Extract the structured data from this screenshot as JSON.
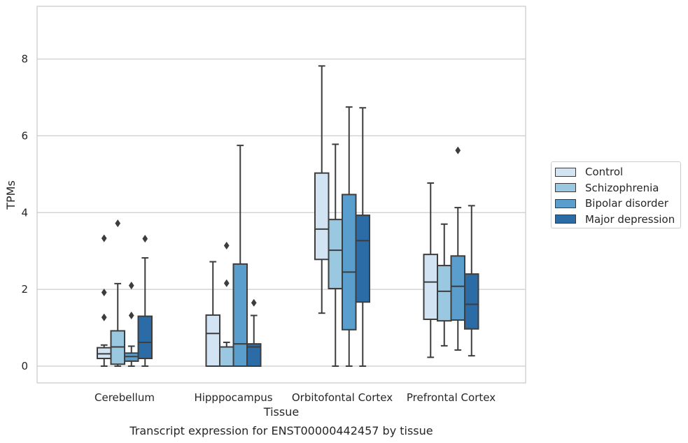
{
  "chart_data": {
    "type": "box",
    "xlabel": "Tissue",
    "ylabel": "TPMs",
    "caption": "Transcript expression for ENST00000442457 by tissue",
    "ylim": [
      -0.45,
      9.4
    ],
    "yticks": [
      0,
      2,
      4,
      6,
      8
    ],
    "grid": true,
    "legend_position": "right",
    "categories": [
      "Cerebellum",
      "Hipppocampus",
      "Orbitofontal Cortex",
      "Prefrontal Cortex"
    ],
    "series": [
      {
        "name": "Control",
        "color": "#d2e3f3",
        "boxes": [
          {
            "whisker_low": 0.0,
            "q1": 0.2,
            "median": 0.32,
            "q3": 0.48,
            "whisker_high": 0.55,
            "outliers": [
              1.27,
              1.92,
              3.33
            ]
          },
          {
            "whisker_low": 0.0,
            "q1": 0.0,
            "median": 0.85,
            "q3": 1.33,
            "whisker_high": 2.72,
            "outliers": []
          },
          {
            "whisker_low": 1.38,
            "q1": 2.78,
            "median": 3.57,
            "q3": 5.03,
            "whisker_high": 7.82,
            "outliers": []
          },
          {
            "whisker_low": 0.23,
            "q1": 1.22,
            "median": 2.19,
            "q3": 2.91,
            "whisker_high": 4.77,
            "outliers": []
          }
        ]
      },
      {
        "name": "Schizophrenia",
        "color": "#9ac8e0",
        "boxes": [
          {
            "whisker_low": 0.0,
            "q1": 0.05,
            "median": 0.5,
            "q3": 0.92,
            "whisker_high": 2.15,
            "outliers": [
              3.72
            ]
          },
          {
            "whisker_low": 0.0,
            "q1": 0.0,
            "median": 0.0,
            "q3": 0.5,
            "whisker_high": 0.62,
            "outliers": [
              2.16,
              3.14
            ]
          },
          {
            "whisker_low": 0.0,
            "q1": 2.02,
            "median": 3.02,
            "q3": 3.82,
            "whisker_high": 5.78,
            "outliers": []
          },
          {
            "whisker_low": 0.53,
            "q1": 1.18,
            "median": 1.95,
            "q3": 2.62,
            "whisker_high": 3.7,
            "outliers": []
          }
        ]
      },
      {
        "name": "Bipolar disorder",
        "color": "#5a9ecd",
        "boxes": [
          {
            "whisker_low": 0.0,
            "q1": 0.13,
            "median": 0.25,
            "q3": 0.34,
            "whisker_high": 0.52,
            "outliers": [
              1.32,
              2.1
            ]
          },
          {
            "whisker_low": 0.0,
            "q1": 0.0,
            "median": 0.58,
            "q3": 2.66,
            "whisker_high": 5.75,
            "outliers": []
          },
          {
            "whisker_low": 0.0,
            "q1": 0.95,
            "median": 2.45,
            "q3": 4.47,
            "whisker_high": 6.75,
            "outliers": []
          },
          {
            "whisker_low": 0.42,
            "q1": 1.2,
            "median": 2.08,
            "q3": 2.87,
            "whisker_high": 4.13,
            "outliers": [
              5.62
            ]
          }
        ]
      },
      {
        "name": "Major depression",
        "color": "#2b6ca6",
        "boxes": [
          {
            "whisker_low": 0.0,
            "q1": 0.2,
            "median": 0.62,
            "q3": 1.3,
            "whisker_high": 2.82,
            "outliers": [
              3.32
            ]
          },
          {
            "whisker_low": 0.0,
            "q1": 0.0,
            "median": 0.5,
            "q3": 0.58,
            "whisker_high": 1.32,
            "outliers": [
              1.65
            ]
          },
          {
            "whisker_low": 0.0,
            "q1": 1.67,
            "median": 3.27,
            "q3": 3.93,
            "whisker_high": 6.73,
            "outliers": []
          },
          {
            "whisker_low": 0.27,
            "q1": 0.97,
            "median": 1.61,
            "q3": 2.4,
            "whisker_high": 4.18,
            "outliers": []
          }
        ]
      }
    ]
  }
}
